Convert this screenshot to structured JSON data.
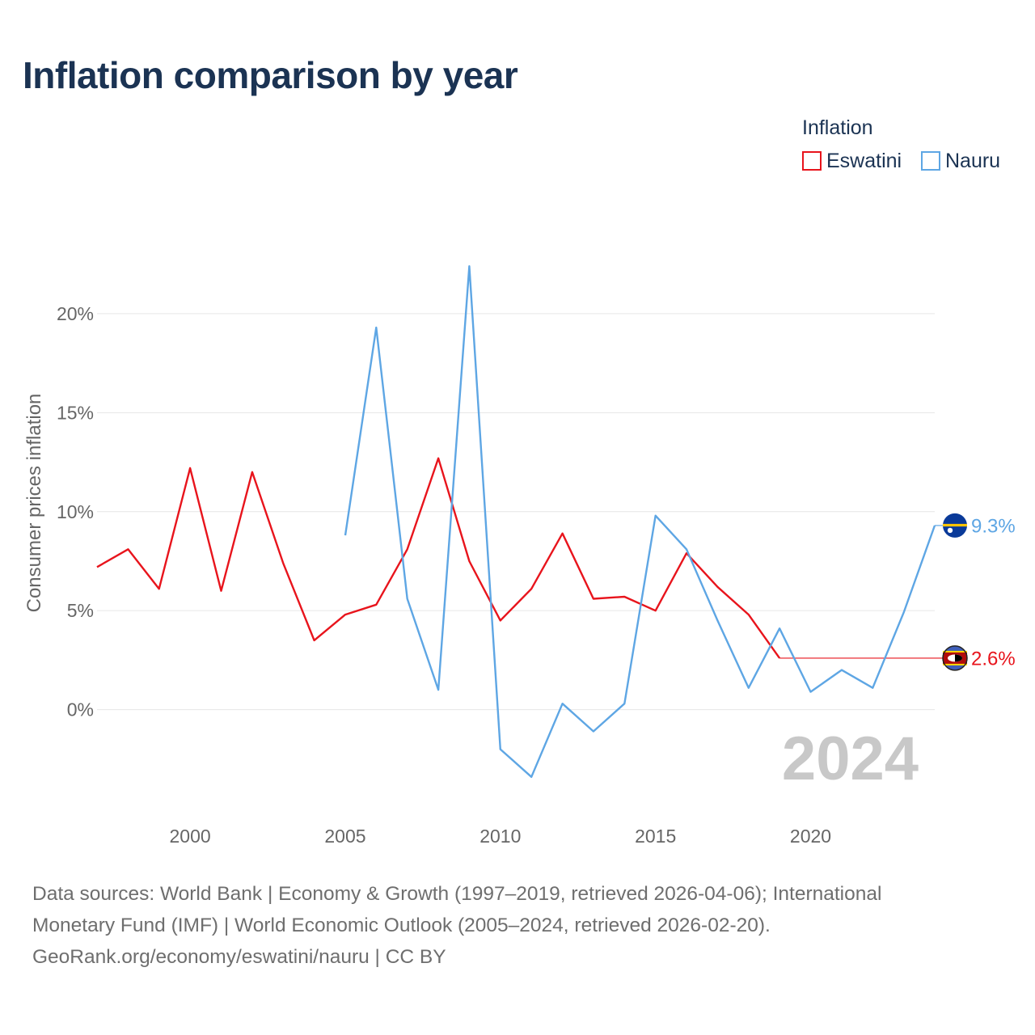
{
  "header": {
    "title": "Inflation comparison by year"
  },
  "legend": {
    "title": "Inflation",
    "items": [
      {
        "label": "Eswatini",
        "color": "#e8141c"
      },
      {
        "label": "Nauru",
        "color": "#5ea6e4"
      }
    ]
  },
  "chart_data": {
    "type": "line",
    "title": "Inflation comparison by year",
    "xlabel": "",
    "ylabel": "Consumer prices inflation",
    "xlim": [
      1997,
      2024
    ],
    "ylim": [
      -5,
      24
    ],
    "x_ticks": [
      2000,
      2005,
      2010,
      2015,
      2020
    ],
    "y_ticks": [
      0,
      5,
      10,
      15,
      20
    ],
    "y_tick_labels": [
      "0%",
      "5%",
      "10%",
      "15%",
      "20%"
    ],
    "grid": true,
    "legend_position": "top-right",
    "year_watermark": "2024",
    "series": [
      {
        "name": "Eswatini",
        "color": "#e8141c",
        "x": [
          1997,
          1998,
          1999,
          2000,
          2001,
          2002,
          2003,
          2004,
          2005,
          2006,
          2007,
          2008,
          2009,
          2010,
          2011,
          2012,
          2013,
          2014,
          2015,
          2016,
          2017,
          2018,
          2019
        ],
        "values": [
          7.2,
          8.1,
          6.1,
          12.2,
          6.0,
          12.0,
          7.4,
          3.5,
          4.8,
          5.3,
          8.1,
          12.7,
          7.5,
          4.5,
          6.1,
          8.9,
          5.6,
          5.7,
          5.0,
          7.9,
          6.2,
          4.8,
          2.6
        ],
        "end_label": "2.6%",
        "end_value": 2.6
      },
      {
        "name": "Nauru",
        "color": "#5ea6e4",
        "x": [
          2005,
          2006,
          2007,
          2008,
          2009,
          2010,
          2011,
          2012,
          2013,
          2014,
          2015,
          2016,
          2017,
          2018,
          2019,
          2020,
          2021,
          2022,
          2023,
          2024
        ],
        "values": [
          8.8,
          19.3,
          5.6,
          1.0,
          22.4,
          -2.0,
          -3.4,
          0.3,
          -1.1,
          0.3,
          9.8,
          8.1,
          4.5,
          1.1,
          4.1,
          0.9,
          2.0,
          1.1,
          4.9,
          9.3
        ],
        "end_label": "9.3%",
        "end_value": 9.3
      }
    ]
  },
  "footer": {
    "line1": "Data sources: World Bank | Economy & Growth (1997–2019, retrieved 2026-04-06); International",
    "line2": "Monetary Fund (IMF) | World Economic Outlook (2005–2024, retrieved 2026-02-20).",
    "line3": "GeoRank.org/economy/eswatini/nauru | CC BY"
  }
}
